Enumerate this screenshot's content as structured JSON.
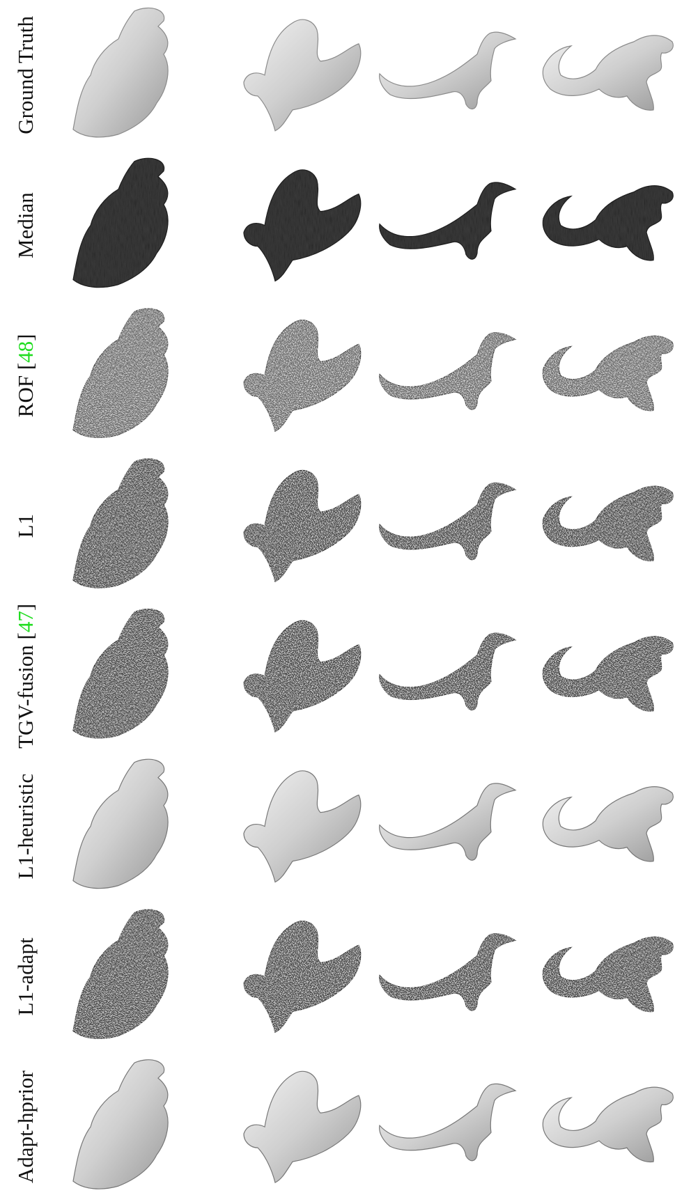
{
  "rows": [
    {
      "label": "Ground Truth"
    },
    {
      "label": "Median"
    },
    {
      "label": "ROF",
      "ref": "[48]"
    },
    {
      "label": "L1"
    },
    {
      "label": "TGV-fusion",
      "ref": "[47]"
    },
    {
      "label": "L1-heuristic"
    },
    {
      "label": "L1-adapt"
    },
    {
      "label": "Adapt-hprior"
    }
  ]
}
